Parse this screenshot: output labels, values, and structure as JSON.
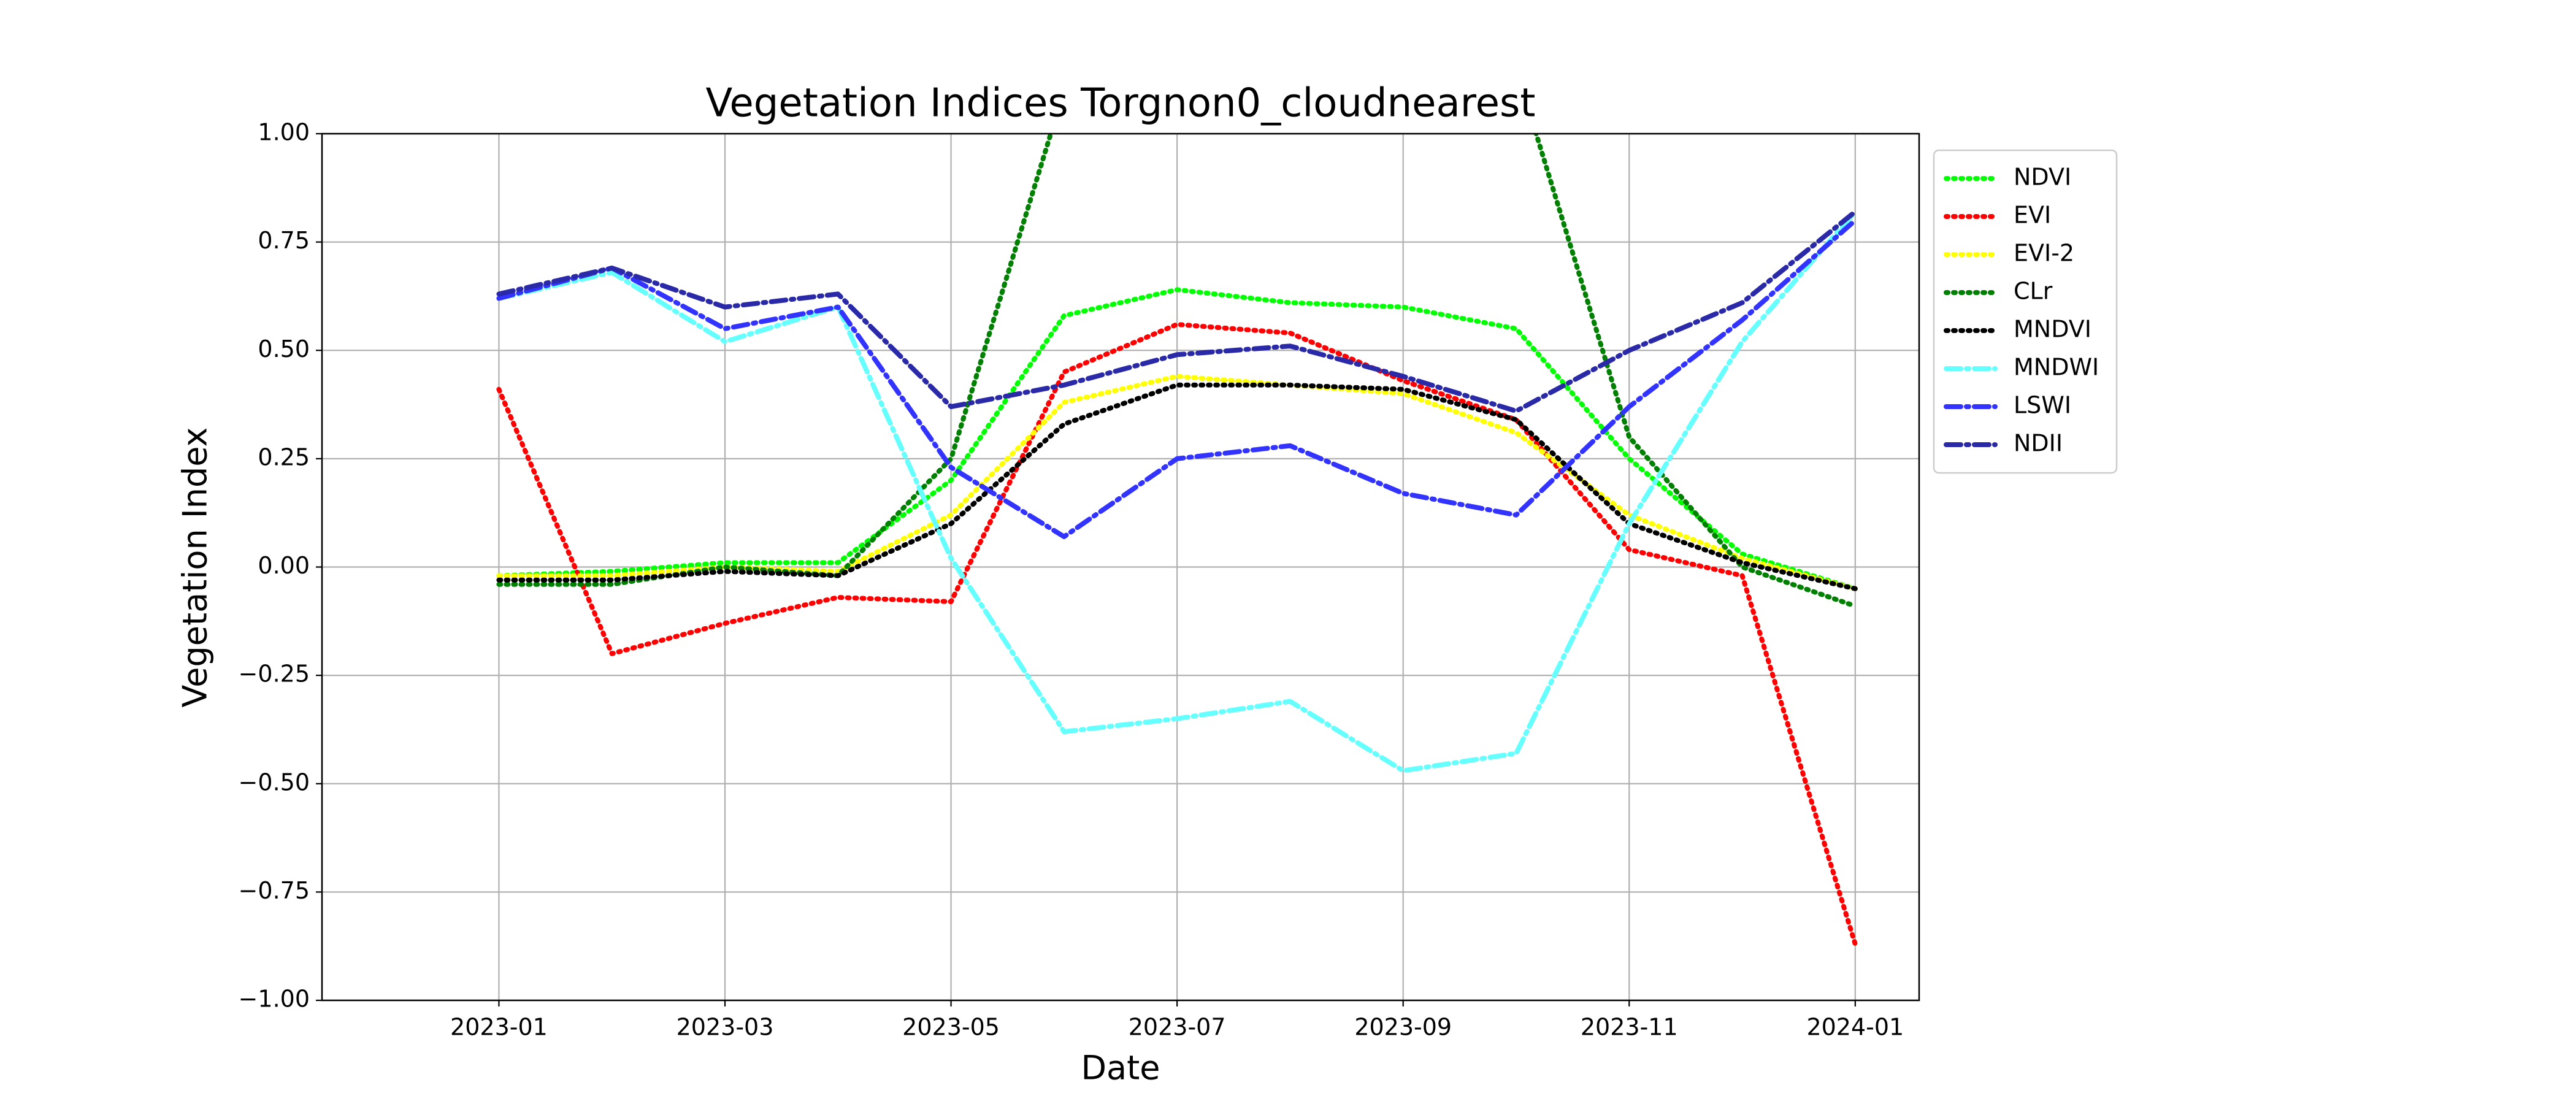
{
  "chart_data": {
    "type": "line",
    "title": "Vegetation Indices Torgnon0_cloudnearest",
    "xlabel": "Date",
    "ylabel": "Vegetation Index",
    "x": [
      "2023-01",
      "2023-02",
      "2023-03",
      "2023-04",
      "2023-05",
      "2023-06",
      "2023-07",
      "2023-08",
      "2023-09",
      "2023-10",
      "2023-11",
      "2023-12",
      "2024-01"
    ],
    "xlim": [
      "2022-12",
      "2024-01"
    ],
    "xticks": [
      "2023-01",
      "2023-03",
      "2023-05",
      "2023-07",
      "2023-09",
      "2023-11",
      "2024-01"
    ],
    "ylim": [
      -1,
      1
    ],
    "yticks": [
      {
        "value": -1,
        "label": "−1.00"
      },
      {
        "value": -0.75,
        "label": "−0.75"
      },
      {
        "value": -0.5,
        "label": "−0.50"
      },
      {
        "value": -0.25,
        "label": "−0.25"
      },
      {
        "value": 0,
        "label": "0.00"
      },
      {
        "value": 0.25,
        "label": "0.25"
      },
      {
        "value": 0.5,
        "label": "0.50"
      },
      {
        "value": 0.75,
        "label": "0.75"
      },
      {
        "value": 1,
        "label": "1.00"
      }
    ],
    "grid": true,
    "legend": "outside right",
    "series": [
      {
        "name": "NDVI",
        "color": "#00ff00",
        "linestyle": "dotted",
        "values": [
          -0.02,
          -0.01,
          0.01,
          0.01,
          0.2,
          0.58,
          0.64,
          0.61,
          0.6,
          0.55,
          0.25,
          0.03,
          -0.05
        ]
      },
      {
        "name": "EVI",
        "color": "#ff0000",
        "linestyle": "dotted",
        "values": [
          0.41,
          -0.2,
          -0.13,
          -0.07,
          -0.08,
          0.45,
          0.56,
          0.54,
          0.43,
          0.34,
          0.04,
          -0.02,
          -0.87
        ]
      },
      {
        "name": "EVI-2",
        "color": "#ffff00",
        "linestyle": "dotted",
        "values": [
          -0.02,
          -0.02,
          0,
          -0.01,
          0.12,
          0.38,
          0.44,
          0.42,
          0.4,
          0.31,
          0.12,
          0.02,
          -0.05
        ]
      },
      {
        "name": "CLr",
        "color": "#008000",
        "linestyle": "dotted",
        "values": [
          -0.04,
          -0.04,
          0,
          -0.02,
          0.25,
          1.1,
          null,
          null,
          null,
          1.15,
          0.3,
          0,
          -0.09
        ]
      },
      {
        "name": "MNDVI",
        "color": "#000000",
        "linestyle": "dotted",
        "values": [
          -0.03,
          -0.03,
          -0.01,
          -0.02,
          0.1,
          0.33,
          0.42,
          0.42,
          0.41,
          0.34,
          0.1,
          0.01,
          -0.05
        ]
      },
      {
        "name": "MNDWI",
        "color": "#66ffff",
        "linestyle": "dashdot",
        "values": [
          0.62,
          0.68,
          0.52,
          0.6,
          0.02,
          -0.38,
          -0.35,
          -0.31,
          -0.47,
          -0.43,
          0.1,
          0.52,
          0.82
        ]
      },
      {
        "name": "LSWI",
        "color": "#3333ff",
        "linestyle": "dashdot",
        "values": [
          0.62,
          0.69,
          0.55,
          0.6,
          0.23,
          0.07,
          0.25,
          0.28,
          0.17,
          0.12,
          0.37,
          0.57,
          0.8
        ]
      },
      {
        "name": "NDII",
        "color": "#2a2aa8",
        "linestyle": "dashdot",
        "values": [
          0.63,
          0.69,
          0.6,
          0.63,
          0.37,
          0.42,
          0.49,
          0.51,
          0.44,
          0.36,
          0.5,
          0.61,
          0.82
        ]
      }
    ]
  }
}
